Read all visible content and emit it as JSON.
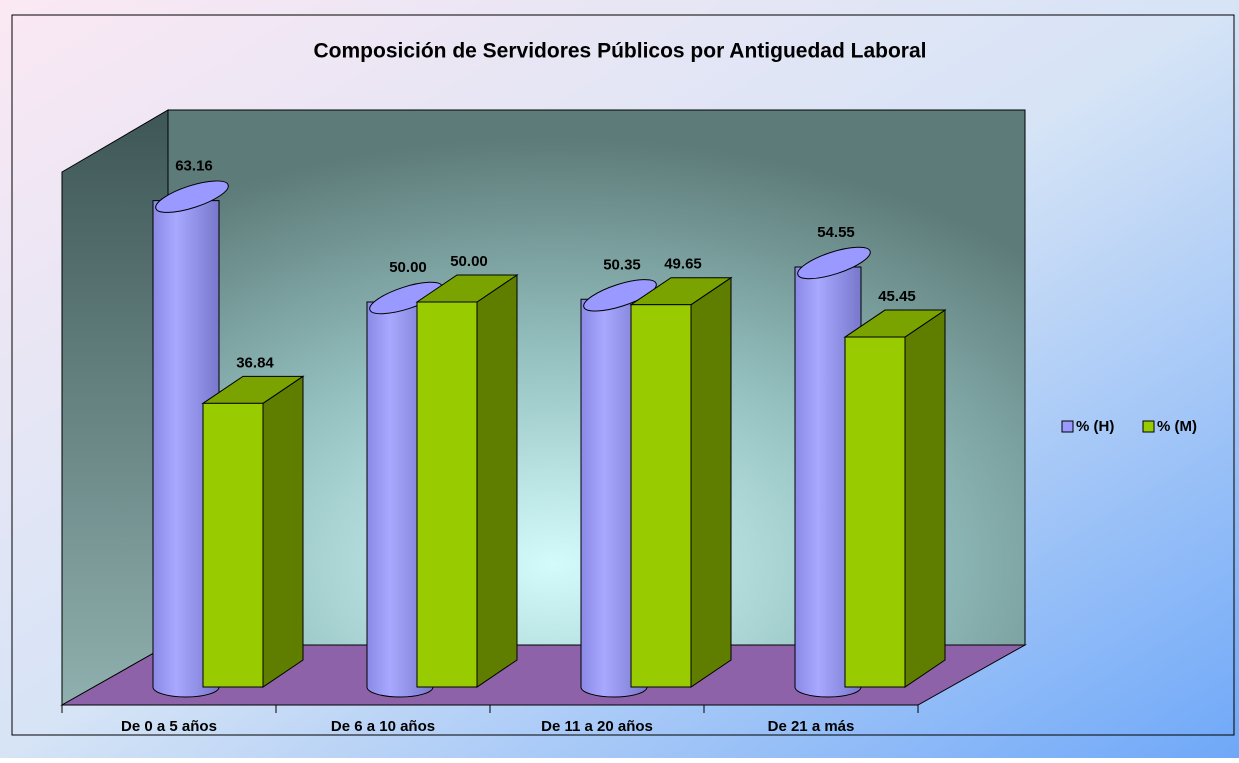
{
  "chart_data": {
    "type": "bar3d",
    "title": "Composición de Servidores Públicos por Antiguedad Laboral",
    "categories": [
      "De 0 a 5 años",
      "De 6 a 10 años",
      "De 11 a 20 años",
      "De 21 a más"
    ],
    "series": [
      {
        "name": "% (H)",
        "color": "#9999ff",
        "shape": "cylinder",
        "values": [
          63.16,
          50.0,
          50.35,
          54.55
        ],
        "value_labels": [
          "63.16",
          "50.00",
          "50.35",
          "54.55"
        ]
      },
      {
        "name": "% (M)",
        "color": "#99cc00",
        "shape": "box",
        "values": [
          36.84,
          50.0,
          49.65,
          45.45
        ],
        "value_labels": [
          "36.84",
          "50.00",
          "49.65",
          "45.45"
        ]
      }
    ],
    "legend": "right"
  }
}
